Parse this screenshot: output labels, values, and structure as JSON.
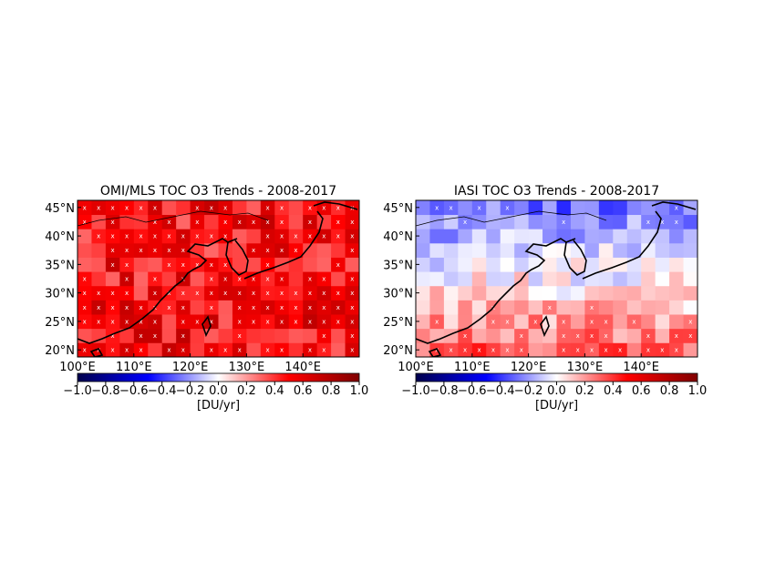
{
  "chart_data": [
    {
      "type": "heatmap",
      "title": "OMI/MLS TOC O3 Trends - 2008-2017",
      "x_ticks": [
        "100°E",
        "110°E",
        "120°E",
        "130°E",
        "140°E"
      ],
      "x_tick_values": [
        100,
        110,
        120,
        130,
        140
      ],
      "y_ticks": [
        "20°N",
        "25°N",
        "30°N",
        "35°N",
        "40°N",
        "45°N"
      ],
      "y_tick_values": [
        20,
        25,
        30,
        35,
        40,
        45
      ],
      "xlim": [
        100,
        150
      ],
      "ylim": [
        18.75,
        46.25
      ],
      "grid_step_deg": 2.5,
      "base_trend": 0.5,
      "dominant_sign": "positive",
      "significance_marker": "x",
      "colorbar": {
        "label": "[DU/yr]",
        "ticks": [
          "−1.0",
          "−0.8",
          "−0.6",
          "−0.4",
          "−0.2",
          "0.0",
          "0.2",
          "0.4",
          "0.6",
          "0.8",
          "1.0"
        ],
        "range": [
          -1.0,
          1.0
        ],
        "colormap": "seismic",
        "colors": [
          "#00004c",
          "#0000ff",
          "#ffffff",
          "#ff0000",
          "#800000"
        ]
      }
    },
    {
      "type": "heatmap",
      "title": "IASI TOC O3 Trends - 2008-2017",
      "x_ticks": [
        "100°E",
        "110°E",
        "120°E",
        "130°E",
        "140°E"
      ],
      "x_tick_values": [
        100,
        110,
        120,
        130,
        140
      ],
      "y_ticks": [
        "20°N",
        "25°N",
        "30°N",
        "35°N",
        "40°N",
        "45°N"
      ],
      "y_tick_values": [
        20,
        25,
        30,
        35,
        40,
        45
      ],
      "xlim": [
        100,
        150
      ],
      "ylim": [
        18.75,
        46.25
      ],
      "grid_step_deg": 2.5,
      "base_trend": 0.0,
      "dominant_sign": "negative north, positive south",
      "significance_marker": "x",
      "colorbar": {
        "label": "[DU/yr]",
        "ticks": [
          "−1.0",
          "−0.8",
          "−0.6",
          "−0.4",
          "−0.2",
          "0.0",
          "0.2",
          "0.4",
          "0.6",
          "0.8",
          "1.0"
        ],
        "range": [
          -1.0,
          1.0
        ],
        "colormap": "seismic",
        "colors": [
          "#00004c",
          "#0000ff",
          "#ffffff",
          "#ff0000",
          "#800000"
        ]
      }
    }
  ]
}
